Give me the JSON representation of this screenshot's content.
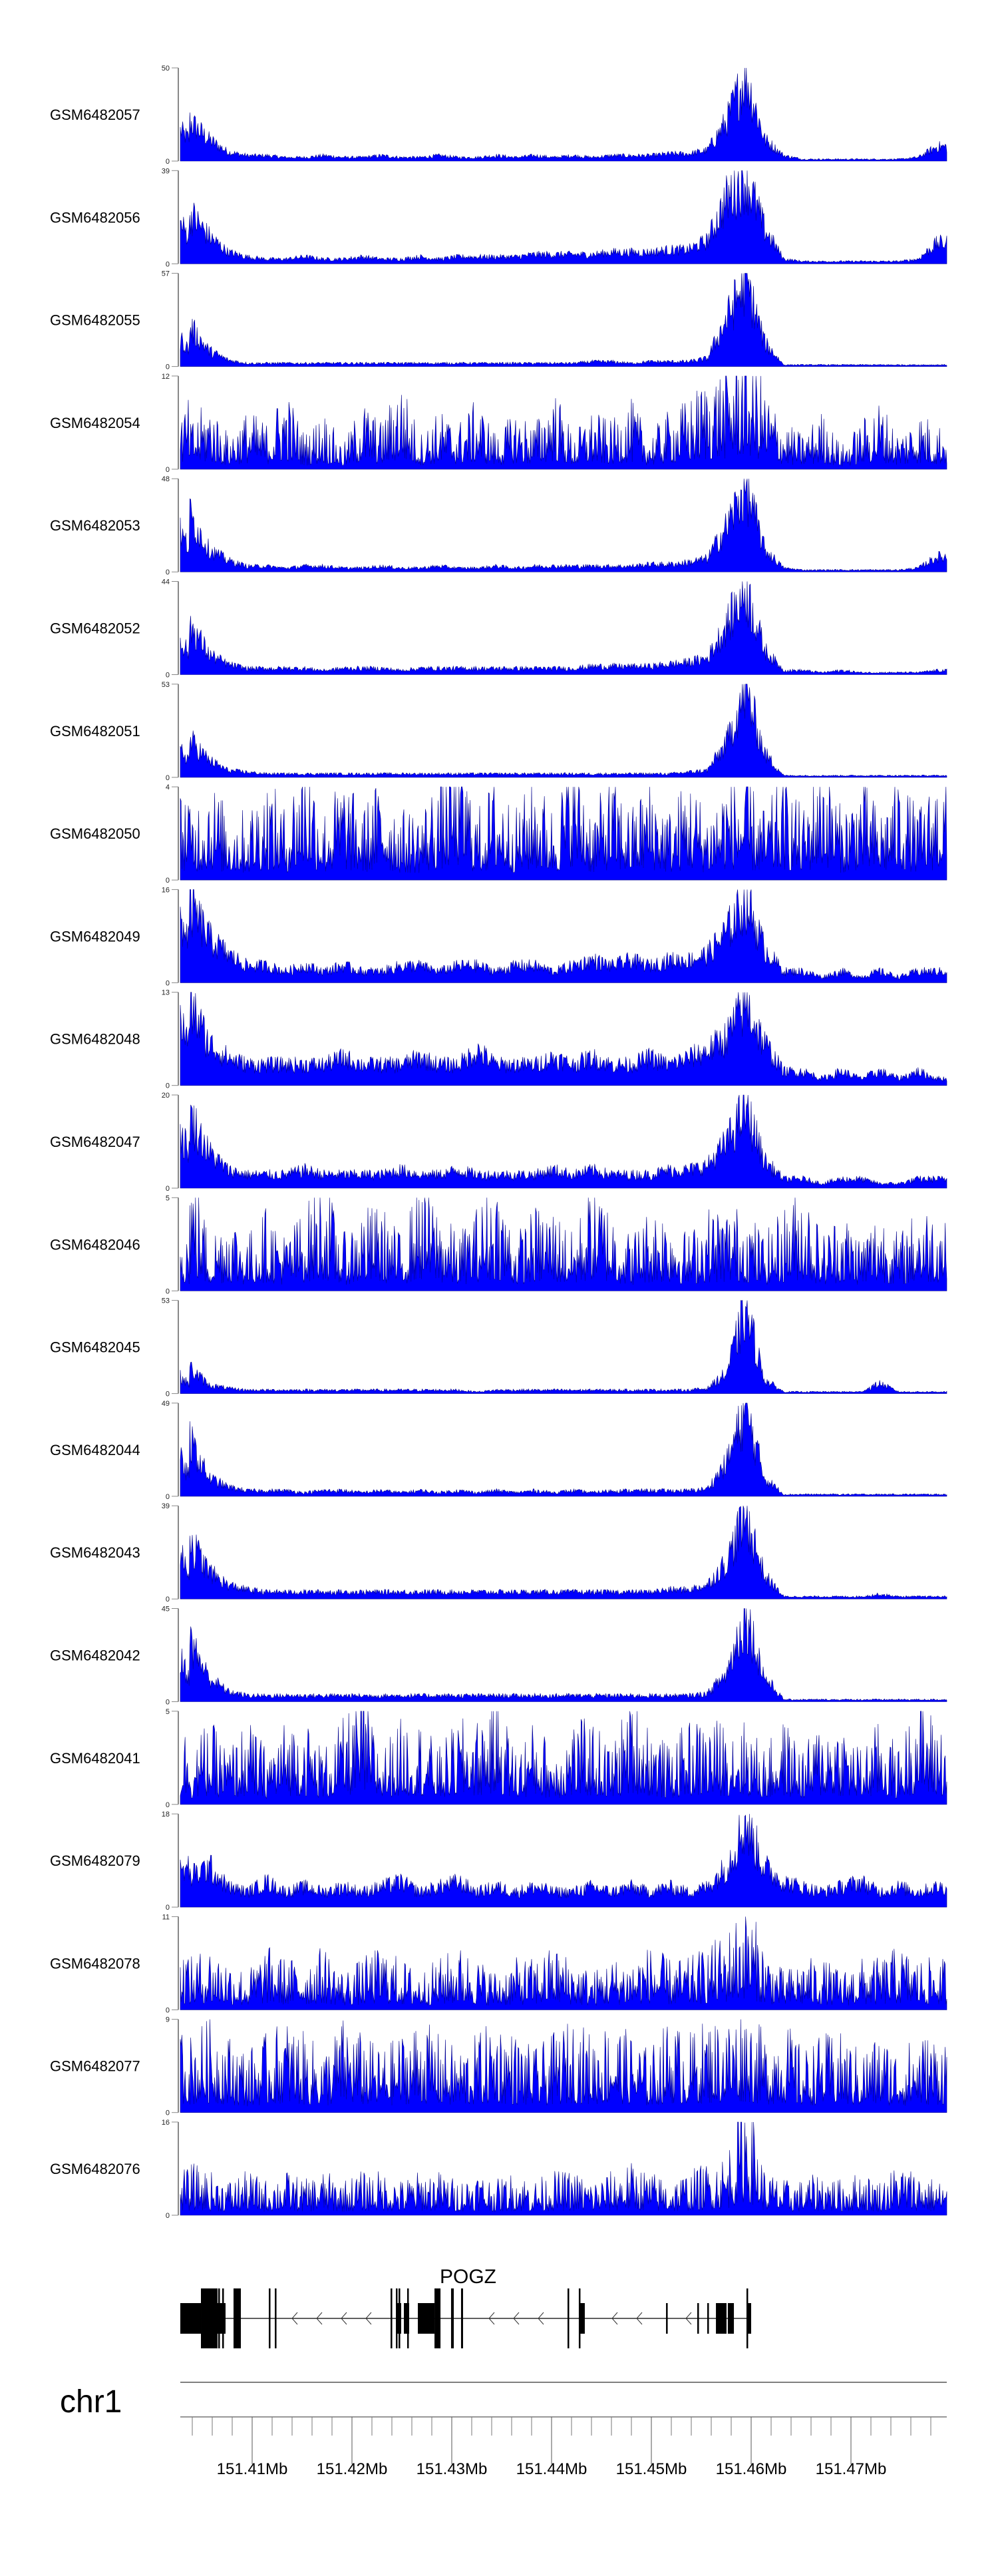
{
  "colors": {
    "signal_fill": "#0000FF",
    "signal_stroke": "#00008B",
    "gene": "#000000",
    "axis": "#666666"
  },
  "chart_data": {
    "type": "area",
    "title": "",
    "xlabel": "",
    "ylabel": "",
    "chromosome": "chr1",
    "xlim": [
      151402800,
      151479600
    ],
    "grid": false,
    "tracks": [
      {
        "name": "GSM6482057",
        "ymin": "0",
        "ymax": "50",
        "values": [
          22,
          12,
          5,
          3,
          3,
          2,
          2,
          3,
          2,
          2,
          3,
          2,
          2,
          3,
          2,
          2,
          3,
          2,
          3,
          2,
          3,
          2,
          3,
          3,
          3,
          4,
          4,
          6,
          22,
          48,
          12,
          3,
          1,
          1,
          1,
          1,
          1,
          1,
          2,
          8
        ]
      },
      {
        "name": "GSM6482056",
        "ymin": "0",
        "ymax": "39",
        "values": [
          22,
          12,
          5,
          3,
          2,
          2,
          3,
          2,
          2,
          3,
          2,
          2,
          3,
          2,
          3,
          3,
          3,
          3,
          4,
          4,
          4,
          4,
          5,
          5,
          5,
          6,
          6,
          10,
          28,
          38,
          15,
          2,
          1,
          1,
          1,
          1,
          1,
          1,
          2,
          9
        ]
      },
      {
        "name": "GSM6482055",
        "ymin": "0",
        "ymax": "57",
        "values": [
          25,
          10,
          4,
          2,
          2,
          2,
          2,
          2,
          2,
          2,
          2,
          2,
          2,
          2,
          2,
          2,
          2,
          2,
          2,
          2,
          2,
          3,
          3,
          2,
          3,
          3,
          3,
          5,
          30,
          55,
          15,
          1,
          1,
          1,
          1,
          1,
          1,
          1,
          1,
          1
        ]
      },
      {
        "name": "GSM6482054",
        "ymin": "0",
        "ymax": "12",
        "values": [
          4,
          6,
          3,
          5,
          4,
          7,
          3,
          5,
          2,
          6,
          4,
          8,
          3,
          5,
          4,
          6,
          3,
          5,
          4,
          7,
          3,
          5,
          4,
          6,
          3,
          5,
          6,
          8,
          9,
          12,
          7,
          4,
          3,
          5,
          2,
          4,
          6,
          3,
          5,
          4
        ]
      },
      {
        "name": "GSM6482053",
        "ymin": "0",
        "ymax": "48",
        "values": [
          30,
          12,
          6,
          3,
          3,
          2,
          3,
          3,
          2,
          2,
          3,
          2,
          2,
          3,
          2,
          2,
          3,
          2,
          3,
          3,
          3,
          3,
          3,
          3,
          4,
          4,
          5,
          7,
          24,
          46,
          12,
          2,
          1,
          1,
          1,
          1,
          1,
          1,
          2,
          8
        ]
      },
      {
        "name": "GSM6482052",
        "ymin": "0",
        "ymax": "44",
        "values": [
          25,
          10,
          5,
          3,
          3,
          3,
          3,
          2,
          3,
          3,
          3,
          2,
          3,
          3,
          3,
          3,
          3,
          3,
          3,
          3,
          3,
          4,
          4,
          4,
          4,
          5,
          6,
          8,
          24,
          42,
          12,
          2,
          2,
          1,
          2,
          1,
          1,
          1,
          1,
          2
        ]
      },
      {
        "name": "GSM6482051",
        "ymin": "0",
        "ymax": "53",
        "values": [
          22,
          10,
          4,
          3,
          2,
          2,
          2,
          2,
          2,
          2,
          2,
          2,
          2,
          2,
          2,
          2,
          2,
          2,
          2,
          2,
          2,
          2,
          2,
          2,
          2,
          2,
          3,
          4,
          20,
          52,
          14,
          1,
          1,
          1,
          1,
          1,
          1,
          1,
          1,
          1
        ]
      },
      {
        "name": "GSM6482050",
        "ymin": "0",
        "ymax": "4",
        "values": [
          2,
          3,
          2,
          2,
          3,
          2,
          4,
          2,
          3,
          2,
          3,
          2,
          2,
          3,
          4,
          2,
          3,
          2,
          3,
          2,
          4,
          2,
          3,
          2,
          3,
          2,
          3,
          2,
          3,
          3,
          2,
          3,
          2,
          4,
          2,
          3,
          2,
          3,
          2,
          3
        ]
      },
      {
        "name": "GSM6482049",
        "ymin": "0",
        "ymax": "16",
        "values": [
          14,
          8,
          5,
          3,
          3,
          2,
          3,
          2,
          3,
          2,
          2,
          3,
          3,
          2,
          3,
          3,
          2,
          3,
          3,
          2,
          3,
          4,
          3,
          4,
          3,
          4,
          4,
          5,
          9,
          15,
          6,
          2,
          2,
          1,
          2,
          1,
          2,
          1,
          2,
          2
        ]
      },
      {
        "name": "GSM6482048",
        "ymin": "0",
        "ymax": "13",
        "values": [
          12,
          6,
          4,
          3,
          3,
          3,
          3,
          3,
          4,
          3,
          3,
          3,
          4,
          3,
          3,
          5,
          3,
          3,
          3,
          4,
          3,
          4,
          3,
          3,
          4,
          3,
          4,
          5,
          7,
          12,
          6,
          2,
          2,
          1,
          2,
          1,
          2,
          1,
          2,
          1
        ]
      },
      {
        "name": "GSM6482047",
        "ymin": "0",
        "ymax": "20",
        "values": [
          16,
          8,
          4,
          3,
          3,
          3,
          4,
          3,
          3,
          3,
          3,
          4,
          3,
          3,
          4,
          3,
          3,
          3,
          3,
          4,
          3,
          4,
          3,
          3,
          3,
          4,
          4,
          5,
          10,
          18,
          6,
          2,
          2,
          1,
          2,
          2,
          1,
          1,
          2,
          2
        ]
      },
      {
        "name": "GSM6482046",
        "ymin": "0",
        "ymax": "5",
        "values": [
          5,
          2,
          3,
          2,
          3,
          2,
          3,
          4,
          2,
          3,
          3,
          2,
          4,
          3,
          2,
          3,
          4,
          2,
          3,
          3,
          2,
          4,
          3,
          2,
          3,
          3,
          2,
          3,
          3,
          3,
          2,
          3,
          4,
          2,
          3,
          2,
          3,
          2,
          3,
          3
        ]
      },
      {
        "name": "GSM6482045",
        "ymin": "0",
        "ymax": "53",
        "values": [
          15,
          5,
          3,
          2,
          2,
          2,
          2,
          2,
          2,
          2,
          2,
          2,
          2,
          2,
          2,
          1,
          2,
          2,
          2,
          2,
          2,
          2,
          2,
          2,
          2,
          2,
          2,
          3,
          12,
          50,
          8,
          1,
          1,
          1,
          1,
          1,
          6,
          1,
          1,
          1
        ]
      },
      {
        "name": "GSM6482044",
        "ymin": "0",
        "ymax": "49",
        "values": [
          30,
          10,
          5,
          3,
          3,
          3,
          2,
          3,
          3,
          2,
          3,
          2,
          3,
          2,
          3,
          2,
          3,
          2,
          3,
          2,
          3,
          2,
          3,
          3,
          3,
          3,
          3,
          4,
          18,
          47,
          10,
          1,
          1,
          1,
          1,
          1,
          1,
          1,
          1,
          1
        ]
      },
      {
        "name": "GSM6482043",
        "ymin": "0",
        "ymax": "39",
        "values": [
          25,
          12,
          6,
          4,
          3,
          3,
          3,
          3,
          3,
          3,
          3,
          3,
          3,
          3,
          3,
          3,
          3,
          3,
          3,
          3,
          3,
          3,
          3,
          3,
          3,
          4,
          4,
          6,
          16,
          37,
          10,
          1,
          1,
          1,
          1,
          1,
          2,
          1,
          1,
          1
        ]
      },
      {
        "name": "GSM6482042",
        "ymin": "0",
        "ymax": "45",
        "values": [
          30,
          12,
          5,
          3,
          3,
          3,
          3,
          3,
          3,
          3,
          3,
          3,
          3,
          3,
          3,
          3,
          3,
          3,
          3,
          3,
          3,
          3,
          3,
          3,
          3,
          3,
          3,
          4,
          14,
          44,
          12,
          1,
          1,
          1,
          1,
          1,
          1,
          1,
          1,
          1
        ]
      },
      {
        "name": "GSM6482041",
        "ymin": "0",
        "ymax": "5",
        "values": [
          2,
          3,
          2,
          3,
          2,
          3,
          3,
          2,
          3,
          4,
          2,
          3,
          3,
          2,
          3,
          3,
          4,
          2,
          3,
          2,
          3,
          3,
          2,
          4,
          3,
          2,
          3,
          3,
          3,
          3,
          2,
          3,
          2,
          3,
          3,
          2,
          3,
          2,
          4,
          3
        ]
      },
      {
        "name": "GSM6482079",
        "ymin": "0",
        "ymax": "18",
        "values": [
          6,
          8,
          4,
          3,
          5,
          3,
          4,
          3,
          4,
          3,
          4,
          5,
          3,
          4,
          5,
          3,
          4,
          3,
          4,
          3,
          3,
          4,
          3,
          4,
          3,
          4,
          3,
          4,
          8,
          17,
          8,
          5,
          4,
          3,
          4,
          5,
          3,
          4,
          3,
          4
        ]
      },
      {
        "name": "GSM6482078",
        "ymin": "0",
        "ymax": "11",
        "values": [
          4,
          5,
          4,
          3,
          5,
          4,
          4,
          5,
          3,
          4,
          5,
          4,
          3,
          4,
          5,
          4,
          3,
          4,
          4,
          5,
          4,
          3,
          4,
          4,
          5,
          4,
          4,
          5,
          6,
          9,
          5,
          3,
          4,
          4,
          3,
          4,
          4,
          5,
          4,
          4
        ]
      },
      {
        "name": "GSM6482077",
        "ymin": "0",
        "ymax": "9",
        "values": [
          5,
          6,
          5,
          4,
          5,
          6,
          5,
          4,
          6,
          5,
          4,
          5,
          6,
          5,
          4,
          5,
          6,
          5,
          4,
          5,
          6,
          5,
          6,
          5,
          4,
          6,
          5,
          6,
          6,
          7,
          5,
          6,
          4,
          5,
          5,
          4,
          5,
          4,
          5,
          5
        ]
      },
      {
        "name": "GSM6482076",
        "ymin": "0",
        "ymax": "16",
        "values": [
          6,
          5,
          4,
          5,
          4,
          5,
          4,
          5,
          4,
          5,
          5,
          4,
          5,
          5,
          4,
          5,
          4,
          5,
          4,
          5,
          5,
          4,
          5,
          6,
          5,
          4,
          5,
          6,
          7,
          16,
          5,
          4,
          4,
          5,
          4,
          5,
          4,
          6,
          5,
          4
        ]
      }
    ],
    "gene": {
      "name": "POGZ",
      "strand": "-",
      "start": 151402800,
      "end": 151460000,
      "exons": [
        [
          151402800,
          151404867,
          "mid"
        ],
        [
          151404867,
          151406533,
          "tall"
        ],
        [
          151406533,
          151407333,
          "mid"
        ],
        [
          151406600,
          151406730,
          "tall"
        ],
        [
          151407000,
          151407130,
          "tall"
        ],
        [
          151408133,
          151408867,
          "tall"
        ],
        [
          151411667,
          151411800,
          "tall"
        ],
        [
          151412270,
          151412400,
          "tall"
        ],
        [
          151423870,
          151424000,
          "tall"
        ],
        [
          151424400,
          151424530,
          "tall"
        ],
        [
          151424400,
          151424930,
          "mid"
        ],
        [
          151424670,
          151424800,
          "tall"
        ],
        [
          151425200,
          151425730,
          "mid"
        ],
        [
          151425530,
          151425660,
          "tall"
        ],
        [
          151426600,
          151428270,
          "mid"
        ],
        [
          151428270,
          151428870,
          "tall"
        ],
        [
          151429930,
          151430200,
          "tall"
        ],
        [
          151430930,
          151431130,
          "tall"
        ],
        [
          151441600,
          151441730,
          "tall"
        ],
        [
          151442730,
          151442870,
          "tall"
        ],
        [
          151442870,
          151443330,
          "mid"
        ],
        [
          151451470,
          151451600,
          "mid"
        ],
        [
          151454600,
          151454730,
          "mid"
        ],
        [
          151455600,
          151455730,
          "mid"
        ],
        [
          151456470,
          151457530,
          "mid"
        ],
        [
          151457660,
          151458270,
          "mid"
        ],
        [
          151459530,
          151459660,
          "tall"
        ],
        [
          151459600,
          151460000,
          "mid"
        ]
      ]
    },
    "axis": {
      "minor_step": 2000,
      "major_ticks": [
        {
          "pos": 151410000,
          "label": "151.41Mb"
        },
        {
          "pos": 151420000,
          "label": "151.42Mb"
        },
        {
          "pos": 151430000,
          "label": "151.43Mb"
        },
        {
          "pos": 151440000,
          "label": "151.44Mb"
        },
        {
          "pos": 151450000,
          "label": "151.45Mb"
        },
        {
          "pos": 151460000,
          "label": "151.46Mb"
        },
        {
          "pos": 151470000,
          "label": "151.47Mb"
        }
      ]
    }
  }
}
